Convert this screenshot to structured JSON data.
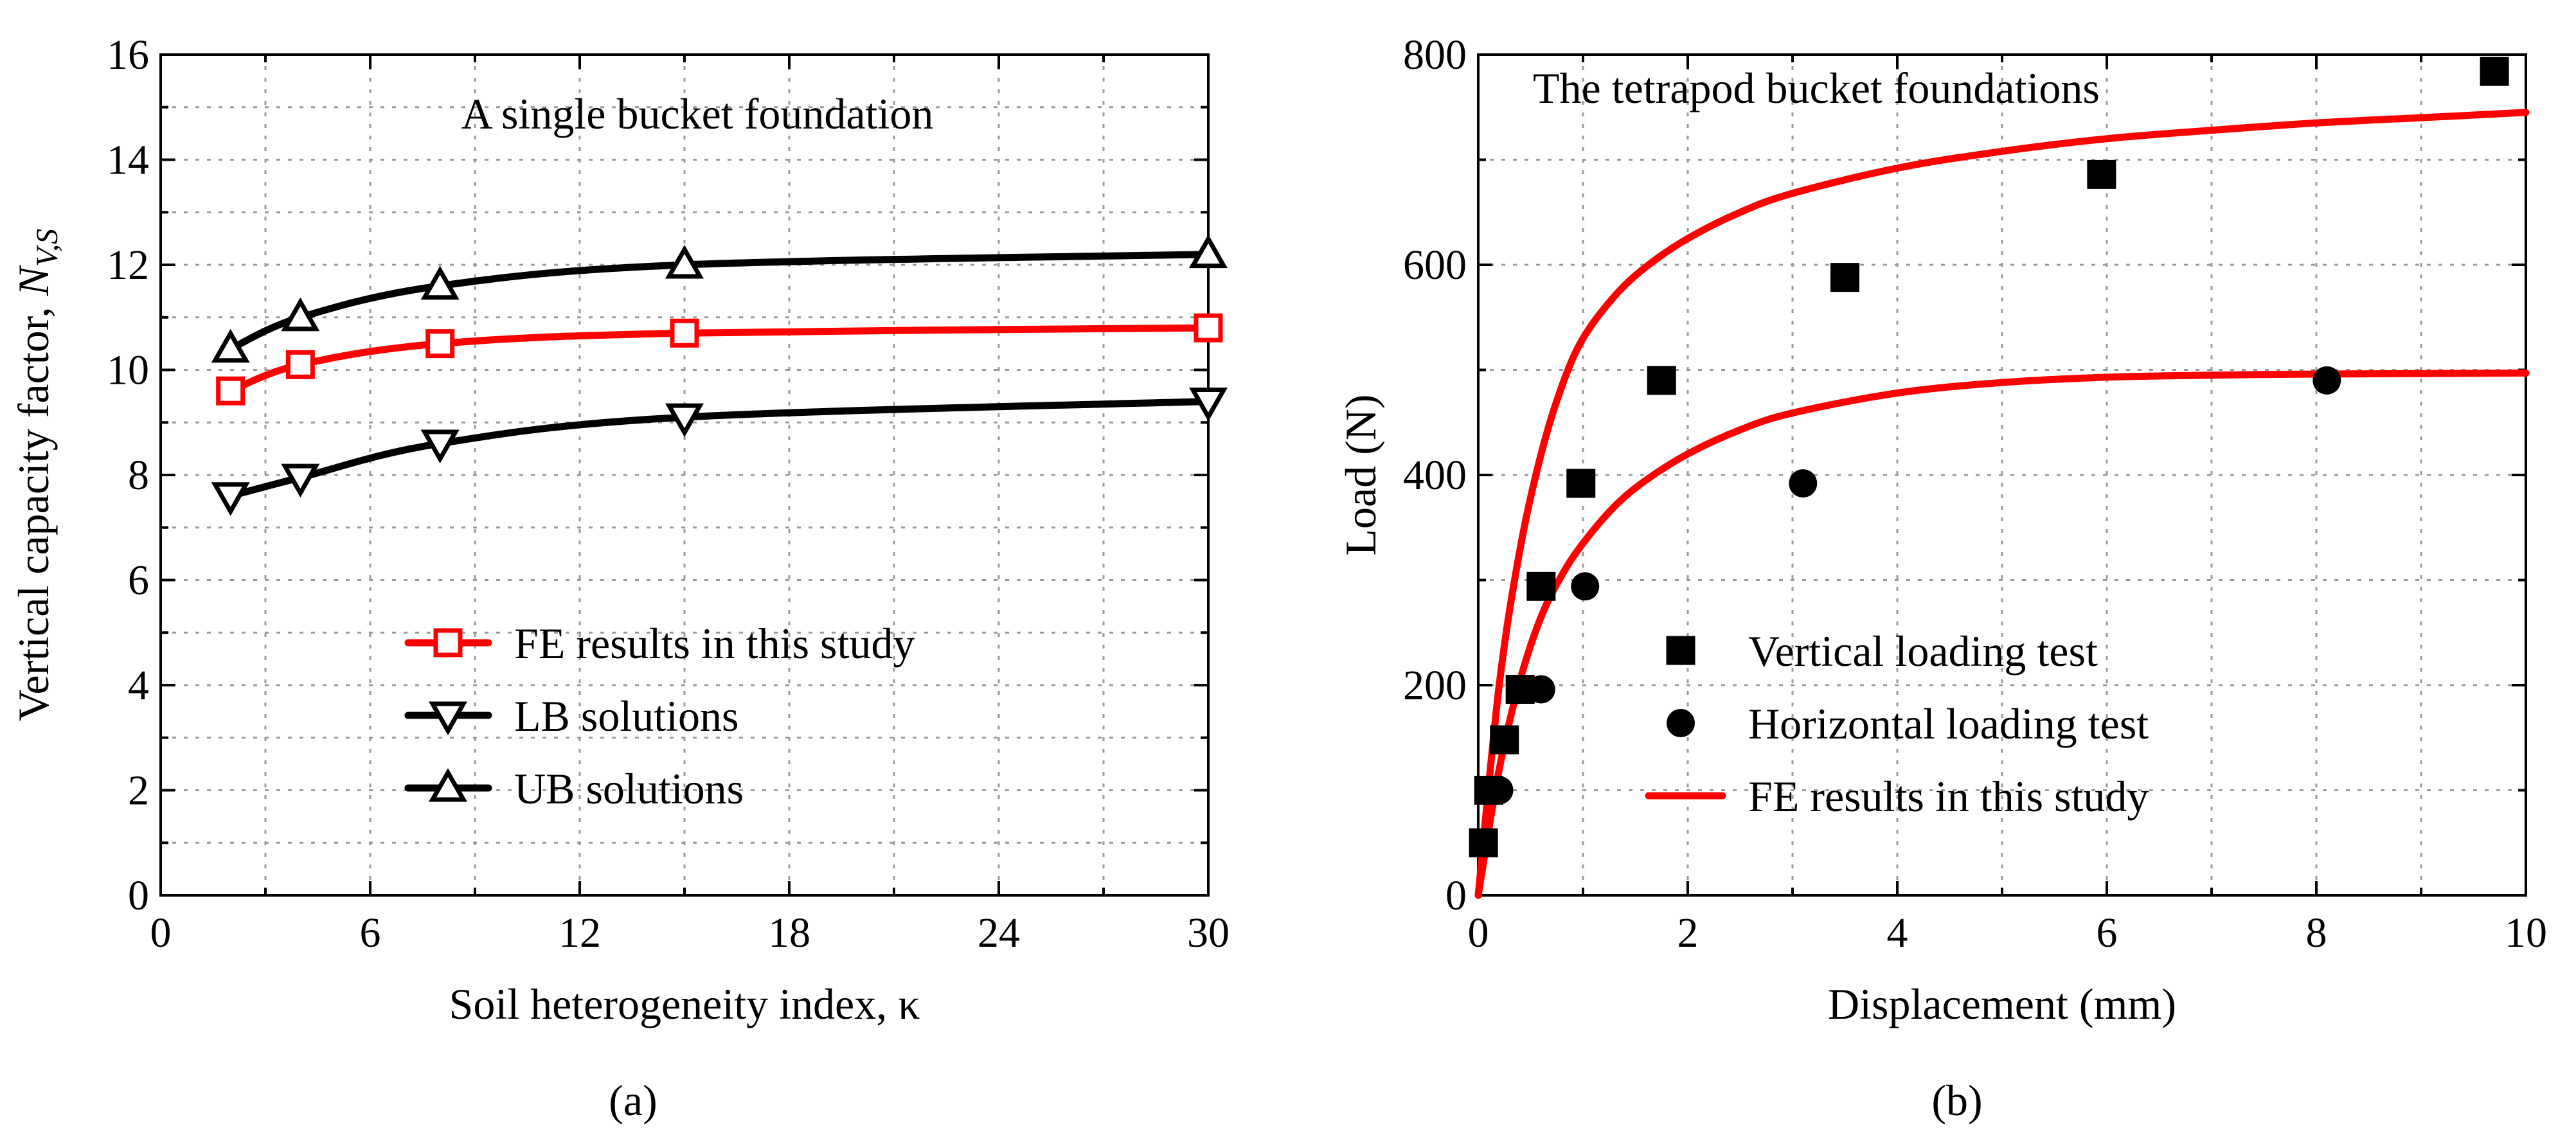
{
  "colors": {
    "fe": "#ff0000",
    "lb": "#000000",
    "ub": "#000000",
    "grid": "#9a9a9a"
  },
  "chart_data": [
    {
      "type": "line",
      "panel_label": "(a)",
      "title": "A single bucket foundation",
      "xlabel": "Soil heterogeneity index, κ",
      "ylabel": {
        "prefix": "Vertical capacity factor, ",
        "symbol": "N",
        "subscript": "V,S"
      },
      "xlim": [
        0,
        30
      ],
      "ylim": [
        0,
        16
      ],
      "xticks": [
        0,
        6,
        12,
        18,
        24,
        30
      ],
      "yticks": [
        0,
        2,
        4,
        6,
        8,
        10,
        12,
        14,
        16
      ],
      "grid": true,
      "legend_position": "lower-left",
      "x": [
        2,
        4,
        8,
        15,
        30
      ],
      "series": [
        {
          "name": "FE results in this study",
          "marker": "square",
          "color": "#ff0000",
          "values": [
            9.6,
            10.1,
            10.5,
            10.7,
            10.8
          ]
        },
        {
          "name": "LB solutions",
          "marker": "triangle-down",
          "color": "#000000",
          "values": [
            7.6,
            7.95,
            8.6,
            9.1,
            9.4
          ]
        },
        {
          "name": "UB solutions",
          "marker": "triangle-up",
          "color": "#000000",
          "values": [
            10.4,
            11.0,
            11.6,
            12.0,
            12.2
          ]
        }
      ]
    },
    {
      "type": "scatter",
      "panel_label": "(b)",
      "title": "The tetrapod bucket foundations",
      "xlabel": "Displacement (mm)",
      "ylabel": "Load (N)",
      "xlim": [
        0,
        10
      ],
      "ylim": [
        0,
        800
      ],
      "xticks": [
        0,
        2,
        4,
        6,
        8,
        10
      ],
      "yticks": [
        0,
        200,
        400,
        600,
        800
      ],
      "grid": true,
      "legend_position": "lower-right",
      "series": [
        {
          "name": "Vertical loading test",
          "marker": "square",
          "color": "#000000",
          "points": [
            [
              0.05,
              50
            ],
            [
              0.1,
              100
            ],
            [
              0.25,
              148
            ],
            [
              0.4,
              196
            ],
            [
              0.6,
              294
            ],
            [
              0.98,
              392
            ],
            [
              1.75,
              490
            ],
            [
              3.5,
              588
            ],
            [
              5.95,
              686
            ],
            [
              9.7,
              784
            ]
          ]
        },
        {
          "name": "Horizontal loading test",
          "marker": "circle",
          "color": "#000000",
          "points": [
            [
              0.05,
              50
            ],
            [
              0.2,
              100
            ],
            [
              0.6,
              196
            ],
            [
              1.02,
              294
            ],
            [
              3.1,
              392
            ],
            [
              8.1,
              490
            ]
          ]
        },
        {
          "name": "FE results in this study",
          "marker": "line",
          "color": "#ff0000",
          "curves": [
            [
              [
                0,
                0
              ],
              [
                0.2,
                200
              ],
              [
                0.4,
                330
              ],
              [
                0.6,
                420
              ],
              [
                0.8,
                485
              ],
              [
                1.0,
                530
              ],
              [
                1.3,
                570
              ],
              [
                1.6,
                598
              ],
              [
                2.0,
                625
              ],
              [
                2.5,
                650
              ],
              [
                3.0,
                668
              ],
              [
                4.0,
                692
              ],
              [
                5.0,
                708
              ],
              [
                6.0,
                720
              ],
              [
                7.0,
                728
              ],
              [
                8.0,
                735
              ],
              [
                9.0,
                740
              ],
              [
                10.0,
                745
              ]
            ],
            [
              [
                0,
                0
              ],
              [
                0.2,
                120
              ],
              [
                0.4,
                205
              ],
              [
                0.6,
                265
              ],
              [
                0.8,
                305
              ],
              [
                1.0,
                335
              ],
              [
                1.3,
                370
              ],
              [
                1.6,
                395
              ],
              [
                2.0,
                420
              ],
              [
                2.5,
                443
              ],
              [
                3.0,
                459
              ],
              [
                4.0,
                478
              ],
              [
                5.0,
                488
              ],
              [
                6.0,
                493
              ],
              [
                7.0,
                495
              ],
              [
                8.0,
                496
              ],
              [
                10.0,
                497
              ]
            ]
          ]
        }
      ]
    }
  ]
}
